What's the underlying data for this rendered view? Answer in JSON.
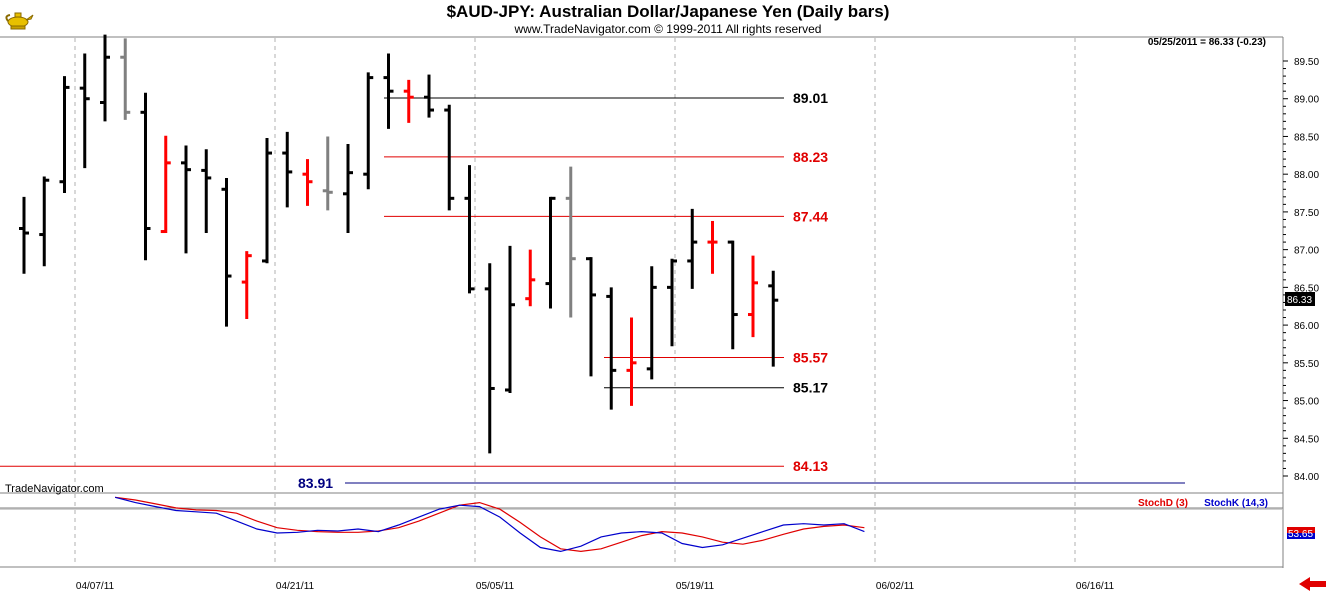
{
  "header": {
    "title": "$AUD-JPY:  Australian Dollar/Japanese Yen  (Daily bars)",
    "copyright": "www.TradeNavigator.com © 1999-2011 All rights reserved",
    "quote": "05/25/2011 = 86.33 (-0.23)",
    "watermark": "TradeNavigator.com",
    "logo_icon": "genie-lamp-icon"
  },
  "chart_data": {
    "type": "ohlc",
    "y_range": [
      83.9,
      89.7
    ],
    "y_ticks": [
      "89.50",
      "89.00",
      "88.50",
      "88.00",
      "87.50",
      "87.00",
      "86.50",
      "86.00",
      "85.50",
      "85.00",
      "84.50",
      "84.00"
    ],
    "x_dates": [
      "04/07/11",
      "04/21/11",
      "05/05/11",
      "05/19/11",
      "06/02/11",
      "06/16/11"
    ],
    "last_price": "86.33",
    "up_color": "#000000",
    "down_color": "#ff0000",
    "unchanged_color": "#808080",
    "bars": [
      {
        "date": "04/01/11",
        "o": 87.28,
        "h": 87.7,
        "l": 86.68,
        "c": 87.22,
        "col": "k"
      },
      {
        "date": "04/04/11",
        "o": 87.2,
        "h": 87.97,
        "l": 86.78,
        "c": 87.92,
        "col": "k"
      },
      {
        "date": "04/05/11",
        "o": 87.9,
        "h": 89.3,
        "l": 87.75,
        "c": 89.15,
        "col": "k"
      },
      {
        "date": "04/06/11",
        "o": 89.14,
        "h": 89.6,
        "l": 88.08,
        "c": 89.0,
        "col": "k"
      },
      {
        "date": "04/07/11",
        "o": 88.95,
        "h": 89.85,
        "l": 88.7,
        "c": 89.55,
        "col": "k"
      },
      {
        "date": "04/08/11",
        "o": 89.55,
        "h": 89.8,
        "l": 88.72,
        "c": 88.82,
        "col": "g"
      },
      {
        "date": "04/11/11",
        "o": 88.82,
        "h": 89.08,
        "l": 86.86,
        "c": 87.28,
        "col": "k"
      },
      {
        "date": "04/12/11",
        "o": 87.24,
        "h": 88.51,
        "l": 87.22,
        "c": 88.15,
        "col": "r"
      },
      {
        "date": "04/13/11",
        "o": 88.15,
        "h": 88.38,
        "l": 86.95,
        "c": 88.06,
        "col": "k"
      },
      {
        "date": "04/14/11",
        "o": 88.05,
        "h": 88.33,
        "l": 87.22,
        "c": 87.95,
        "col": "k"
      },
      {
        "date": "04/15/11",
        "o": 87.8,
        "h": 87.95,
        "l": 85.98,
        "c": 86.65,
        "col": "k"
      },
      {
        "date": "04/18/11",
        "o": 86.57,
        "h": 86.98,
        "l": 86.08,
        "c": 86.92,
        "col": "r"
      },
      {
        "date": "04/19/11",
        "o": 86.85,
        "h": 88.48,
        "l": 86.82,
        "c": 88.28,
        "col": "k"
      },
      {
        "date": "04/20/11",
        "o": 88.28,
        "h": 88.56,
        "l": 87.56,
        "c": 88.03,
        "col": "k"
      },
      {
        "date": "04/21/11",
        "o": 88.0,
        "h": 88.2,
        "l": 87.58,
        "c": 87.9,
        "col": "r"
      },
      {
        "date": "04/22/11",
        "o": 87.78,
        "h": 88.5,
        "l": 87.52,
        "c": 87.76,
        "col": "g"
      },
      {
        "date": "04/25/11",
        "o": 87.74,
        "h": 88.4,
        "l": 87.22,
        "c": 88.02,
        "col": "k"
      },
      {
        "date": "04/26/11",
        "o": 88.0,
        "h": 89.35,
        "l": 87.8,
        "c": 89.28,
        "col": "k"
      },
      {
        "date": "04/27/11",
        "o": 89.28,
        "h": 89.6,
        "l": 88.6,
        "c": 89.1,
        "col": "k"
      },
      {
        "date": "04/28/11",
        "o": 89.1,
        "h": 89.25,
        "l": 88.68,
        "c": 89.02,
        "col": "r"
      },
      {
        "date": "04/29/11",
        "o": 89.02,
        "h": 89.32,
        "l": 88.75,
        "c": 88.85,
        "col": "k"
      },
      {
        "date": "05/02/11",
        "o": 88.85,
        "h": 88.92,
        "l": 87.52,
        "c": 87.68,
        "col": "k"
      },
      {
        "date": "05/03/11",
        "o": 87.68,
        "h": 88.12,
        "l": 86.42,
        "c": 86.48,
        "col": "k"
      },
      {
        "date": "05/04/11",
        "o": 86.48,
        "h": 86.82,
        "l": 84.3,
        "c": 85.16,
        "col": "k"
      },
      {
        "date": "05/05/11",
        "o": 85.14,
        "h": 87.05,
        "l": 85.1,
        "c": 86.27,
        "col": "k"
      },
      {
        "date": "05/06/11",
        "o": 86.35,
        "h": 87.0,
        "l": 86.25,
        "c": 86.6,
        "col": "r"
      },
      {
        "date": "05/09/11",
        "o": 86.55,
        "h": 87.7,
        "l": 86.22,
        "c": 87.68,
        "col": "k"
      },
      {
        "date": "05/10/11",
        "o": 87.68,
        "h": 88.1,
        "l": 86.1,
        "c": 86.88,
        "col": "g"
      },
      {
        "date": "05/11/11",
        "o": 86.88,
        "h": 86.9,
        "l": 85.32,
        "c": 86.4,
        "col": "k"
      },
      {
        "date": "05/12/11",
        "o": 86.38,
        "h": 86.5,
        "l": 84.88,
        "c": 85.4,
        "col": "k"
      },
      {
        "date": "05/13/11",
        "o": 85.4,
        "h": 86.1,
        "l": 84.93,
        "c": 85.5,
        "col": "r"
      },
      {
        "date": "05/16/11",
        "o": 85.42,
        "h": 86.78,
        "l": 85.28,
        "c": 86.5,
        "col": "k"
      },
      {
        "date": "05/17/11",
        "o": 86.5,
        "h": 86.88,
        "l": 85.72,
        "c": 86.85,
        "col": "k"
      },
      {
        "date": "05/18/11",
        "o": 86.85,
        "h": 87.54,
        "l": 86.48,
        "c": 87.1,
        "col": "k"
      },
      {
        "date": "05/19/11",
        "o": 87.1,
        "h": 87.38,
        "l": 86.68,
        "c": 87.1,
        "col": "r"
      },
      {
        "date": "05/20/11",
        "o": 87.1,
        "h": 87.12,
        "l": 85.68,
        "c": 86.14,
        "col": "k"
      },
      {
        "date": "05/23/11",
        "o": 86.14,
        "h": 86.92,
        "l": 85.84,
        "c": 86.56,
        "col": "r"
      },
      {
        "date": "05/24/11",
        "o": 86.52,
        "h": 86.72,
        "l": 85.45,
        "c": 86.33,
        "col": "k"
      }
    ],
    "levels": [
      {
        "label": "89.01",
        "value": 89.01,
        "color": "#000000"
      },
      {
        "label": "88.23",
        "value": 88.23,
        "color": "#e00000"
      },
      {
        "label": "87.44",
        "value": 87.44,
        "color": "#e00000"
      },
      {
        "label": "85.57",
        "value": 85.57,
        "color": "#e00000"
      },
      {
        "label": "85.17",
        "value": 85.17,
        "color": "#000000"
      },
      {
        "label": "84.13",
        "value": 84.13,
        "color": "#e00000"
      },
      {
        "label": "83.91",
        "value": 83.91,
        "color": "#000080"
      }
    ],
    "stochastic": {
      "labels": [
        "StochD (3)",
        "StochK (14,3)"
      ],
      "colors": [
        "#e00000",
        "#0000cc"
      ],
      "range": [
        0,
        100
      ],
      "last_value": "53.65",
      "d_values": [
        98,
        94,
        88,
        82,
        79,
        78,
        74,
        62,
        52,
        48,
        46,
        45,
        45,
        47,
        52,
        62,
        74,
        86,
        90,
        80,
        60,
        38,
        20,
        16,
        20,
        30,
        40,
        46,
        44,
        38,
        30,
        27,
        33,
        42,
        50,
        54,
        56,
        52
      ],
      "k_values": [
        98,
        90,
        84,
        78,
        76,
        74,
        62,
        50,
        44,
        45,
        48,
        47,
        50,
        46,
        56,
        68,
        80,
        86,
        84,
        68,
        44,
        22,
        16,
        24,
        38,
        44,
        46,
        44,
        28,
        22,
        26,
        36,
        46,
        56,
        58,
        56,
        58,
        46
      ]
    }
  }
}
